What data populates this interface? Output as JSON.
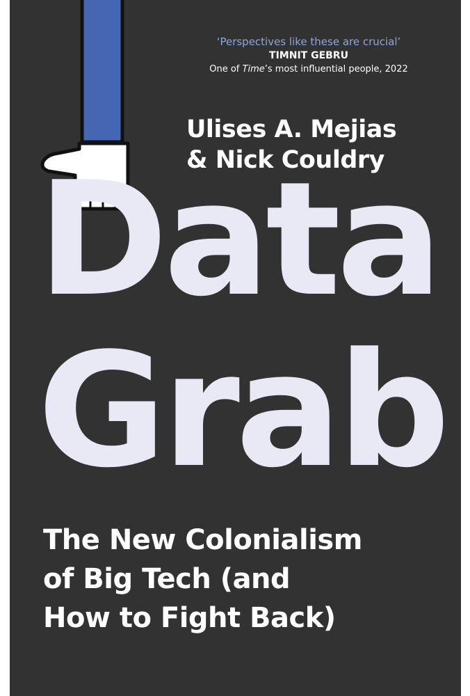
{
  "cover": {
    "quote": {
      "text": "‘Perspectives like these are crucial’",
      "author": "TIMNIT GEBRU",
      "credit_prefix": "One of ",
      "credit_emphasis": "Time",
      "credit_suffix": "’s most influential people, 2022"
    },
    "authors": [
      "Ulises A. Mejias",
      "& Nick Couldry"
    ],
    "title_lines": [
      "Data",
      "Grab"
    ],
    "subtitle_lines": [
      "The New Colonialism",
      "of Big Tech (and",
      "How to Fight Back)"
    ],
    "colors": {
      "background": "#333233",
      "quote_accent": "#8fa6d8",
      "title": "#e9e9f6",
      "sleeve": "#4466b3"
    },
    "icons": [
      "thumbs-down-hand-icon"
    ]
  }
}
